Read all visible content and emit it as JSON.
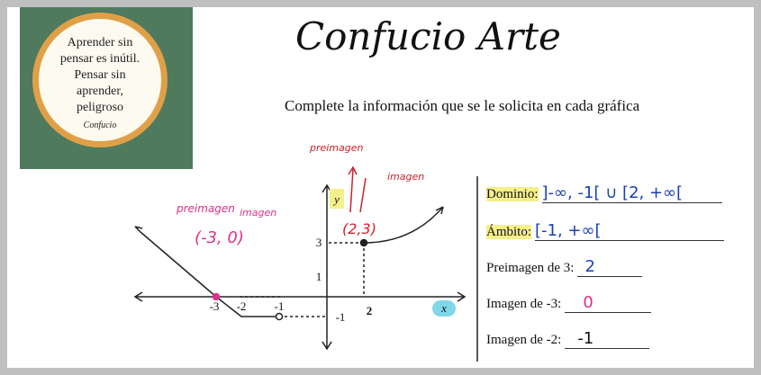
{
  "quote": {
    "lines": [
      "Aprender sin",
      "pensar es inútil.",
      "Pensar sin",
      "aprender,",
      "peligroso"
    ],
    "author": "Confucio"
  },
  "header": {
    "title": "Confucio Arte",
    "instruction": "Complete la información que se le solicita en cada gráfica"
  },
  "graph": {
    "axis_x": "x",
    "axis_y": "y",
    "x_ticks": [
      "-3",
      "-2",
      "-1",
      "2"
    ],
    "y_ticks": [
      "3",
      "1",
      "-1"
    ],
    "notes": {
      "preimage_left": "preimagen",
      "image_left": "imagen",
      "point_left": "(-3, 0)",
      "preimage_top": "preimagen",
      "image_top": "imagen",
      "point_top": "(2,3)"
    }
  },
  "form": {
    "rows": [
      {
        "label": "Dominio:",
        "answer": "]-∞, -1[ ∪ [2, +∞["
      },
      {
        "label": "Ámbito:",
        "answer": "[-1, +∞["
      },
      {
        "label": "Preimagen de 3:",
        "answer": "2"
      },
      {
        "label": "Imagen de -3:",
        "answer": "0"
      },
      {
        "label": "Imagen de -2:",
        "answer": "-1"
      }
    ]
  }
}
